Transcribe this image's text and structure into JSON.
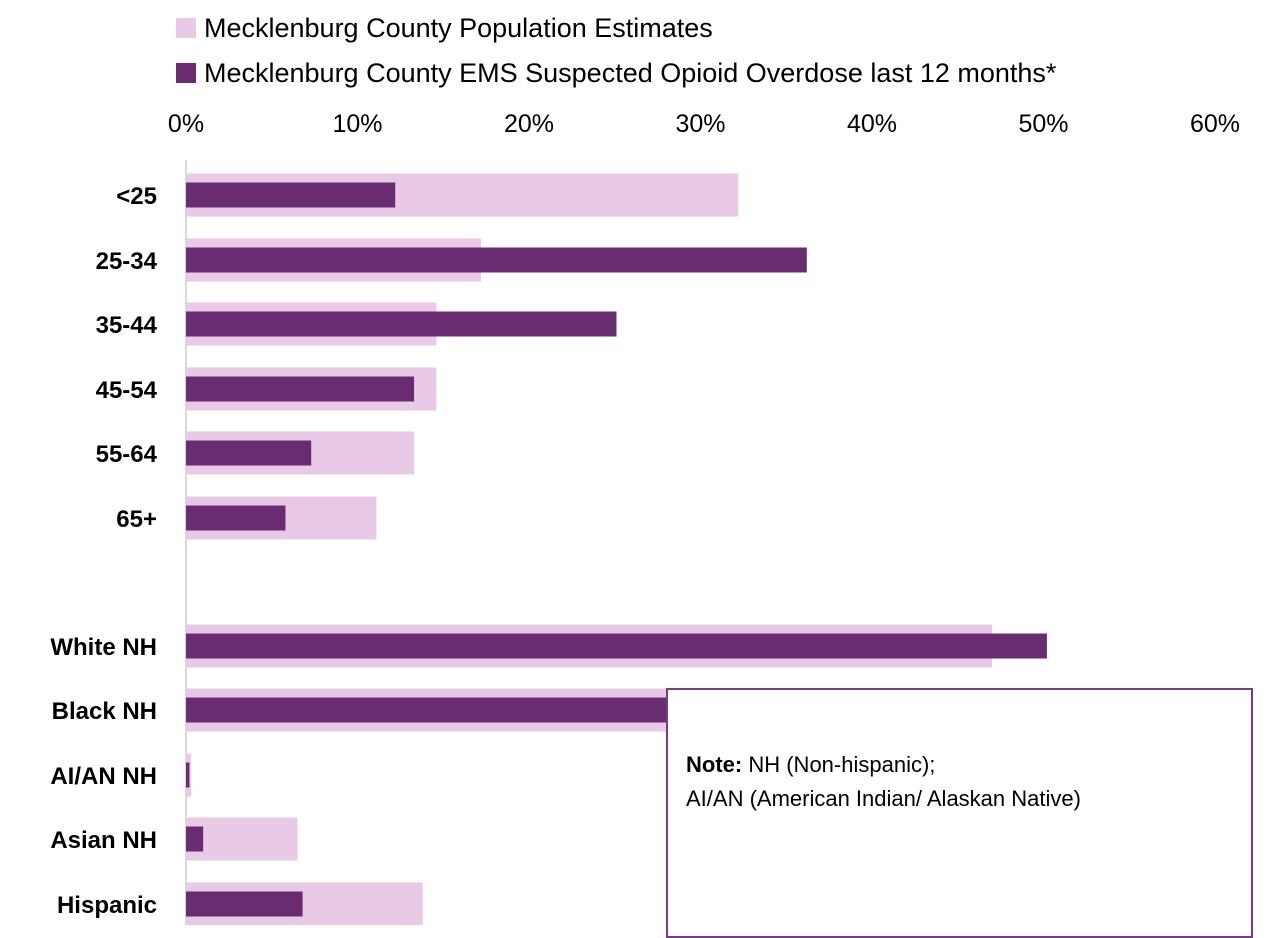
{
  "legend": {
    "population_label": "Mecklenburg County Population Estimates",
    "ems_label": "Mecklenburg County EMS Suspected Opioid Overdose last 12 months*"
  },
  "note": {
    "label": "Note:",
    "line1": "NH (Non-hispanic);",
    "line2": "AI/AN (American Indian/ Alaskan Native)"
  },
  "colors": {
    "population": "#e8c9e6",
    "ems": "#6a2c70",
    "note_border": "#7a3b82"
  },
  "chart_data": {
    "type": "bar",
    "orientation": "horizontal",
    "xlim": [
      0,
      60
    ],
    "x_ticks": [
      "0%",
      "10%",
      "20%",
      "30%",
      "40%",
      "50%",
      "60%"
    ],
    "grid": false,
    "legend_position": "top",
    "categories": [
      "<25",
      "25-34",
      "35-44",
      "45-54",
      "55-64",
      "65+",
      "White NH",
      "Black NH",
      "AI/AN NH",
      "Asian NH",
      "Hispanic"
    ],
    "series": [
      {
        "name": "Mecklenburg County Population Estimates",
        "values": [
          32.2,
          17.2,
          14.6,
          14.6,
          13.3,
          11.1,
          47.0,
          32.3,
          0.3,
          6.5,
          13.8
        ]
      },
      {
        "name": "Mecklenburg County EMS Suspected Opioid Overdose last 12 months*",
        "values": [
          12.2,
          36.2,
          25.1,
          13.3,
          7.3,
          5.8,
          50.2,
          41.7,
          0.2,
          1.0,
          6.8
        ]
      }
    ]
  }
}
